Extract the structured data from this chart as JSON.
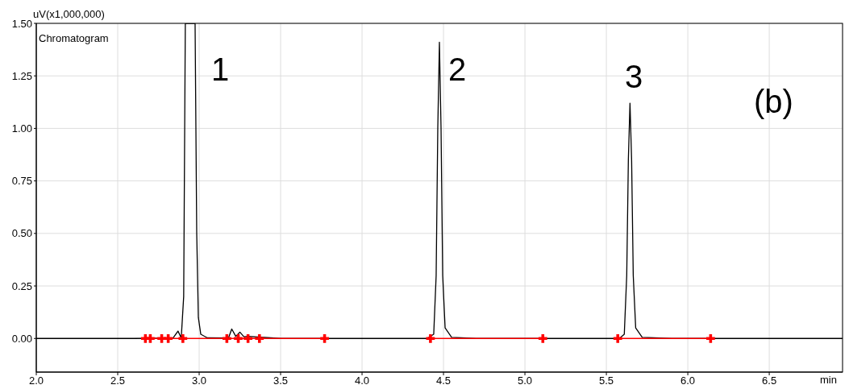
{
  "chart_data": {
    "type": "line",
    "ylabel": "uV(x1,000,000)",
    "xlabel": "min",
    "xlim": [
      2,
      6.95
    ],
    "ylim": [
      -0.16,
      1.5
    ],
    "xticks": [
      {
        "value": 2,
        "label": "2.0"
      },
      {
        "value": 2.5,
        "label": "2.5"
      },
      {
        "value": 3,
        "label": "3.0"
      },
      {
        "value": 3.5,
        "label": "3.5"
      },
      {
        "value": 4,
        "label": "4.0"
      },
      {
        "value": 4.5,
        "label": "4.5"
      },
      {
        "value": 5,
        "label": "5.0"
      },
      {
        "value": 5.5,
        "label": "5.5"
      },
      {
        "value": 6,
        "label": "6.0"
      },
      {
        "value": 6.5,
        "label": "6.5"
      }
    ],
    "yticks": [
      {
        "value": 0,
        "label": "0.00"
      },
      {
        "value": 0.25,
        "label": "0.25"
      },
      {
        "value": 0.5,
        "label": "0.50"
      },
      {
        "value": 0.75,
        "label": "0.75"
      },
      {
        "value": 1,
        "label": "1.00"
      },
      {
        "value": 1.25,
        "label": "1.25"
      },
      {
        "value": 1.5,
        "label": "1.50"
      }
    ],
    "grid": true,
    "series": [
      {
        "color": "#000000",
        "marker": "none",
        "x": [
          2,
          2.6,
          2.84,
          2.87,
          2.89,
          2.905,
          2.915,
          2.975,
          2.985,
          2.995,
          3.01,
          3.05,
          3.18,
          3.2,
          3.225,
          3.25,
          3.275,
          3.3,
          3.5,
          4.4,
          4.44,
          4.455,
          4.465,
          4.475,
          4.485,
          4.495,
          4.51,
          4.55,
          4.7,
          5.58,
          5.61,
          5.625,
          5.635,
          5.645,
          5.655,
          5.665,
          5.68,
          5.72,
          5.9,
          6.95
        ],
        "values": [
          0,
          0,
          0.002,
          0.035,
          0.003,
          0.2,
          1.5,
          1.5,
          0.5,
          0.1,
          0.02,
          0.003,
          0.002,
          0.045,
          0.01,
          0.03,
          0.008,
          0.01,
          0,
          0,
          0.02,
          0.3,
          1.0,
          1.41,
          1.0,
          0.3,
          0.05,
          0.005,
          0,
          0,
          0.02,
          0.3,
          0.85,
          1.12,
          0.85,
          0.3,
          0.05,
          0.005,
          0,
          0
        ]
      },
      {
        "color": "#ff0000",
        "marker": "cross",
        "x": [
          2.67,
          2.7,
          2.77,
          2.81,
          2.9,
          3.17,
          3.24,
          3.3,
          3.37,
          3.77,
          4.1,
          4.42,
          5.11,
          5.3,
          5.57,
          6.14
        ],
        "values": [
          0,
          0,
          0,
          0,
          0,
          0,
          0,
          0,
          0,
          0,
          null,
          0,
          0,
          null,
          0,
          0
        ]
      }
    ],
    "annotations": [
      "Chromatogram",
      "(b)",
      "1",
      "2",
      "3"
    ]
  }
}
